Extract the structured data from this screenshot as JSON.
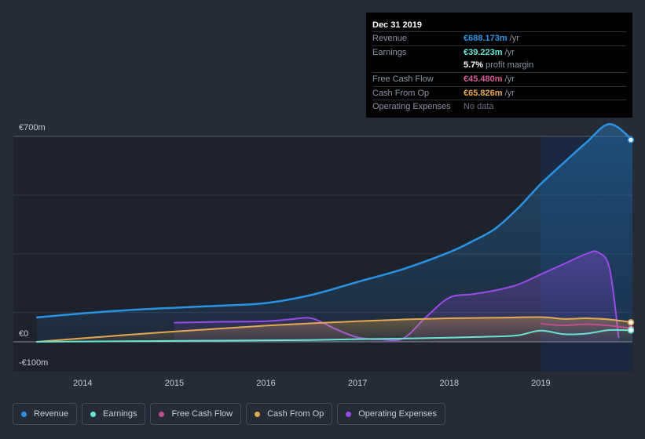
{
  "tooltip": {
    "date": "Dec 31 2019",
    "rows": [
      {
        "label": "Revenue",
        "value": "€688.173m",
        "unit": "/yr",
        "color": "#2a93e4"
      },
      {
        "label": "Earnings",
        "value": "€39.223m",
        "unit": "/yr",
        "color": "#66e6d2"
      },
      {
        "label": "",
        "value": "5.7%",
        "unit": "profit margin",
        "color": "#ffffff"
      },
      {
        "label": "Free Cash Flow",
        "value": "€45.480m",
        "unit": "/yr",
        "color": "#d65b95"
      },
      {
        "label": "Cash From Op",
        "value": "€65.826m",
        "unit": "/yr",
        "color": "#e8a84f"
      },
      {
        "label": "Operating Expenses",
        "value": "No data",
        "unit": "",
        "color": "#6a7080"
      }
    ]
  },
  "legend": [
    {
      "label": "Revenue",
      "color": "#2a93e4"
    },
    {
      "label": "Earnings",
      "color": "#66e6d2"
    },
    {
      "label": "Free Cash Flow",
      "color": "#c24f8c"
    },
    {
      "label": "Cash From Op",
      "color": "#e8a84f"
    },
    {
      "label": "Operating Expenses",
      "color": "#9b4bea"
    }
  ],
  "chart_data": {
    "type": "line",
    "title": "",
    "xlabel": "",
    "ylabel": "",
    "currency": "€",
    "y_tick_labels": [
      "€700m",
      "€0",
      "-€100m"
    ],
    "y_ticks": [
      700,
      0,
      -100
    ],
    "ylim": [
      -100,
      700
    ],
    "xlim": [
      2013.5,
      2020.0
    ],
    "x_tick_labels": [
      "2014",
      "2015",
      "2016",
      "2017",
      "2018",
      "2019"
    ],
    "x_ticks": [
      2014,
      2015,
      2016,
      2017,
      2018,
      2019
    ],
    "highlight_start": 2019.0,
    "series": [
      {
        "name": "Revenue",
        "color": "#2a93e4",
        "fill": true,
        "x": [
          2013.5,
          2014.0,
          2014.5,
          2015.0,
          2015.5,
          2016.0,
          2016.5,
          2017.0,
          2017.5,
          2018.0,
          2018.25,
          2018.5,
          2018.75,
          2019.0,
          2019.25,
          2019.5,
          2019.75,
          2020.0
        ],
        "y": [
          83,
          97,
          108,
          116,
          123,
          132,
          160,
          204,
          248,
          305,
          342,
          385,
          455,
          538,
          610,
          680,
          742,
          688
        ]
      },
      {
        "name": "Operating Expenses",
        "color": "#9b4bea",
        "fill": true,
        "x": [
          2015.0,
          2015.5,
          2016.0,
          2016.25,
          2016.5,
          2016.75,
          2017.0,
          2017.25,
          2017.5,
          2017.75,
          2018.0,
          2018.25,
          2018.5,
          2018.75,
          2019.0,
          2019.25,
          2019.5,
          2019.625,
          2019.75,
          2019.85
        ],
        "y": [
          65,
          68,
          70,
          76,
          80,
          45,
          15,
          8,
          12,
          85,
          150,
          162,
          175,
          195,
          230,
          265,
          300,
          305,
          250,
          15
        ]
      },
      {
        "name": "Cash From Op",
        "color": "#e8a84f",
        "fill": true,
        "x": [
          2013.5,
          2014.0,
          2014.5,
          2015.0,
          2015.5,
          2016.0,
          2016.5,
          2017.0,
          2017.5,
          2018.0,
          2018.5,
          2019.0,
          2019.25,
          2019.5,
          2019.75,
          2020.0
        ],
        "y": [
          0,
          12,
          24,
          35,
          45,
          55,
          63,
          70,
          76,
          80,
          82,
          84,
          78,
          80,
          76,
          66
        ]
      },
      {
        "name": "Free Cash Flow",
        "color": "#c24f8c",
        "fill": false,
        "x": [
          2019.0,
          2019.25,
          2019.5,
          2019.75,
          2020.0
        ],
        "y": [
          62,
          56,
          60,
          55,
          45
        ]
      },
      {
        "name": "Earnings",
        "color": "#66e6d2",
        "fill": false,
        "x": [
          2013.5,
          2014.0,
          2015.0,
          2016.0,
          2016.5,
          2017.0,
          2017.5,
          2018.0,
          2018.5,
          2018.75,
          2019.0,
          2019.25,
          2019.5,
          2019.75,
          2020.0
        ],
        "y": [
          0,
          1,
          3,
          5,
          6,
          9,
          11,
          14,
          18,
          22,
          38,
          26,
          28,
          40,
          39
        ]
      }
    ]
  }
}
